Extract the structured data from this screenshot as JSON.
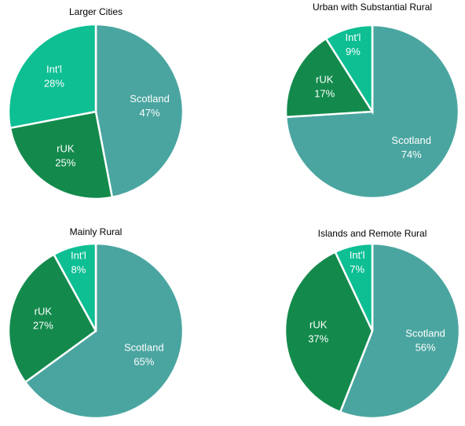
{
  "chart_data": [
    {
      "type": "pie",
      "title": "Larger Cities",
      "categories": [
        "Scotland",
        "rUK",
        "Int'l"
      ],
      "values": [
        47,
        25,
        28
      ],
      "value_labels": [
        "47%",
        "25%",
        "28%"
      ],
      "colors": [
        "#4aa5a0",
        "#138a4c",
        "#0dbf93"
      ]
    },
    {
      "type": "pie",
      "title": "Urban with Substantial Rural",
      "categories": [
        "Scotland",
        "rUK",
        "Int'l"
      ],
      "values": [
        74,
        17,
        9
      ],
      "value_labels": [
        "74%",
        "17%",
        "9%"
      ],
      "colors": [
        "#4aa5a0",
        "#138a4c",
        "#0dbf93"
      ]
    },
    {
      "type": "pie",
      "title": "Mainly Rural",
      "categories": [
        "Scotland",
        "rUK",
        "Int'l"
      ],
      "values": [
        65,
        27,
        8
      ],
      "value_labels": [
        "65%",
        "27%",
        "8%"
      ],
      "colors": [
        "#4aa5a0",
        "#138a4c",
        "#0dbf93"
      ]
    },
    {
      "type": "pie",
      "title": "Islands and Remote Rural",
      "categories": [
        "Scotland",
        "rUK",
        "Int'l"
      ],
      "values": [
        56,
        37,
        7
      ],
      "value_labels": [
        "56%",
        "37%",
        "7%"
      ],
      "colors": [
        "#4aa5a0",
        "#138a4c",
        "#0dbf93"
      ]
    }
  ]
}
